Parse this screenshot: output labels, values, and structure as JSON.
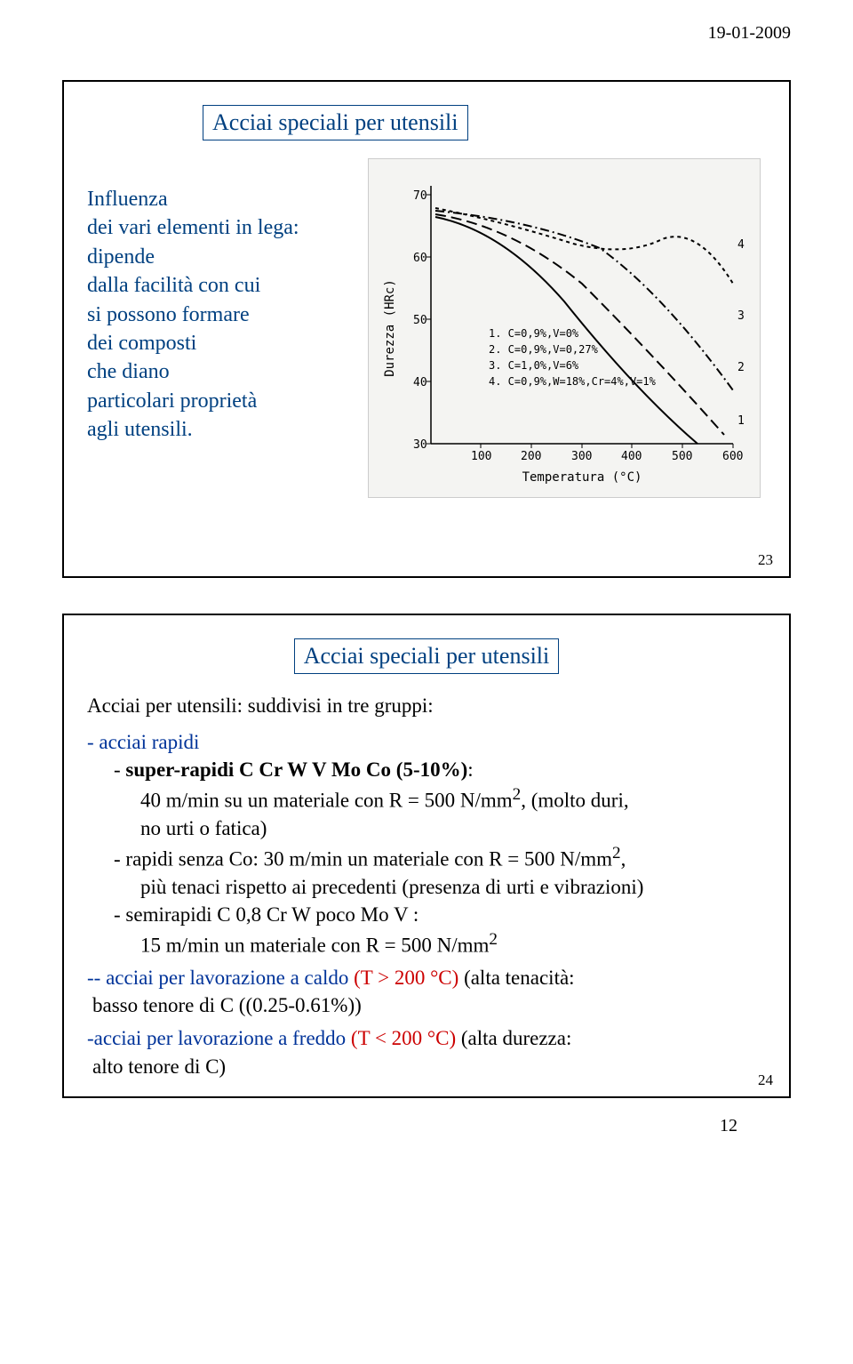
{
  "header": {
    "date": "19-01-2009"
  },
  "slide1": {
    "title": "Acciai speciali per utensili",
    "paragraph": "Influenza\ndei vari elementi in lega:\ndipende\ndalla facilità con cui\nsi possono formare\ndei composti\nche diano\nparticolari proprietà\nagli utensili.",
    "slide_number": "23",
    "chart": {
      "x_label": "Temperatura (°C)",
      "y_label": "Durezza (HRc)",
      "x_ticks": [
        100,
        200,
        300,
        400,
        500,
        600
      ],
      "y_ticks": [
        30,
        40,
        50,
        60,
        70
      ],
      "legend": [
        "1.  C=0,9%,V=0%",
        "2.  C=0,9%,V=0,27%",
        "3.  C=1,0%,V=6%",
        "4.  C=0,9%,W=18%,Cr=4%,V=1%"
      ],
      "curve_labels": [
        "1",
        "2",
        "3",
        "4"
      ],
      "colors": {
        "bg": "#f4f4f2",
        "axis": "#000000",
        "line": "#000000"
      }
    }
  },
  "slide2": {
    "title": "Acciai speciali per utensili",
    "intro": "Acciai per utensili: suddivisi in tre gruppi:",
    "group1": {
      "head": "- acciai rapidi",
      "sub1_pre": "- ",
      "sub1_bold": "super-rapidi C Cr W V Mo Co (5-10%)",
      "sub1_post": ":",
      "sub1_line2a": "40 m/min su un materiale con R = 500 N/mm",
      "sub1_line2_sup": "2",
      "sub1_line2b": ", (molto duri,",
      "sub1_line3": "no urti o fatica)",
      "sub2_line1a": "- rapidi senza Co: 30 m/min un materiale con R = 500 N/mm",
      "sub2_line1_sup": "2",
      "sub2_line1b": ",",
      "sub2_line2": "più tenaci rispetto ai precedenti (presenza di urti e vibrazioni)",
      "sub3_line1": "- semirapidi C 0,8 Cr W poco Mo V :",
      "sub3_line2a": "15 m/min un materiale con R = 500 N/mm",
      "sub3_line2_sup": "2"
    },
    "group2": {
      "line1a": "-- acciai per lavorazione a caldo ",
      "line1_red": "(T > 200 °C)",
      "line1b": " (alta tenacità:",
      "line2": "basso tenore di C ((0.25-0.61%))"
    },
    "group3": {
      "line1a": "-acciai per lavorazione a freddo ",
      "line1_red": "(T < 200 °C)",
      "line1b": " (alta durezza:",
      "line2": "alto tenore di C)"
    },
    "slide_number": "24"
  },
  "footer": {
    "page_number": "12"
  }
}
